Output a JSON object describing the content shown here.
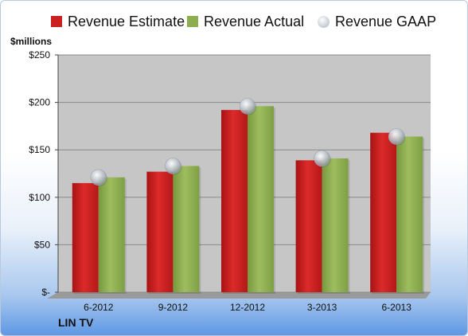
{
  "legend": {
    "estimate": "Revenue Estimate",
    "actual": "Revenue Actual",
    "gaap": "Revenue GAAP"
  },
  "unit_label": "$millions",
  "footer_label": "LIN TV",
  "colors": {
    "estimate": "#cc1f1f",
    "actual": "#8cae4f",
    "gaap": "#c3c9d1",
    "plot_bg": "#c6c6c6"
  },
  "chart_data": {
    "type": "bar",
    "categories": [
      "6-2012",
      "9-2012",
      "12-2012",
      "3-2013",
      "6-2013"
    ],
    "series": [
      {
        "name": "Revenue Estimate",
        "values": [
          115,
          127,
          192,
          139,
          168
        ]
      },
      {
        "name": "Revenue Actual",
        "values": [
          121,
          133,
          196,
          141,
          164
        ]
      },
      {
        "name": "Revenue GAAP",
        "values": [
          121,
          133,
          196,
          141,
          164
        ]
      }
    ],
    "ylabel": "$millions",
    "ylim": [
      0,
      250
    ],
    "yticks": [
      0,
      50,
      100,
      150,
      200,
      250
    ],
    "ytick_labels": [
      "$-",
      "$50",
      "$100",
      "$150",
      "$200",
      "$250"
    ],
    "grid": true
  }
}
